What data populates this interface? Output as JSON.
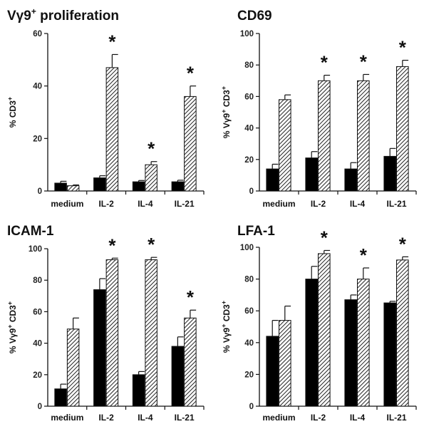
{
  "chart_data": [
    {
      "type": "bar",
      "title": "Vγ9",
      "title_sup": "+",
      "title_rest": " proliferation",
      "ylabel": "% CD3",
      "ylabel_sup": "+",
      "ylim": [
        0,
        60
      ],
      "yticks": [
        "0",
        "20",
        "40",
        "60"
      ],
      "categories": [
        "medium",
        "IL-2",
        "IL-4",
        "IL-21"
      ],
      "series": [
        {
          "fill": "solid",
          "values": [
            3,
            5,
            3.5,
            3.5
          ],
          "errors": [
            0.7,
            0.8,
            0.5,
            0.6
          ]
        },
        {
          "fill": "hatched",
          "values": [
            2,
            47,
            10,
            36
          ],
          "errors": [
            0.3,
            5,
            1.2,
            4
          ]
        }
      ],
      "significant": [
        "",
        "*",
        "*",
        "*"
      ]
    },
    {
      "type": "bar",
      "title": "CD69",
      "title_sup": "",
      "title_rest": "",
      "ylabel": "% Vγ9",
      "ylabel_sup": "+",
      "ylabel_rest": " CD3",
      "ylabel_sup2": "+",
      "ylim": [
        0,
        100
      ],
      "yticks": [
        "0",
        "20",
        "40",
        "60",
        "80",
        "100"
      ],
      "categories": [
        "medium",
        "IL-2",
        "IL-4",
        "IL-21"
      ],
      "series": [
        {
          "fill": "solid",
          "values": [
            14,
            21,
            14,
            22
          ],
          "errors": [
            3,
            4,
            4,
            5
          ]
        },
        {
          "fill": "hatched",
          "values": [
            58,
            70,
            70,
            79
          ],
          "errors": [
            3,
            3.5,
            4,
            4
          ]
        }
      ],
      "significant": [
        "",
        "*",
        "*",
        "*"
      ]
    },
    {
      "type": "bar",
      "title": "ICAM-1",
      "title_sup": "",
      "title_rest": "",
      "ylabel": "% Vγ9",
      "ylabel_sup": "+",
      "ylabel_rest": " CD3",
      "ylabel_sup2": "+",
      "ylim": [
        0,
        100
      ],
      "yticks": [
        "0",
        "20",
        "40",
        "60",
        "80",
        "100"
      ],
      "categories": [
        "medium",
        "IL-2",
        "IL-4",
        "IL-21"
      ],
      "series": [
        {
          "fill": "solid",
          "values": [
            11,
            74,
            20,
            38
          ],
          "errors": [
            3,
            7,
            2,
            6
          ]
        },
        {
          "fill": "hatched",
          "values": [
            49,
            93,
            93,
            56
          ],
          "errors": [
            7,
            1,
            1.5,
            5
          ]
        }
      ],
      "significant": [
        "",
        "*",
        "*",
        "*"
      ]
    },
    {
      "type": "bar",
      "title": "LFA-1",
      "title_sup": "",
      "title_rest": "",
      "ylabel": "% Vγ9",
      "ylabel_sup": "+",
      "ylabel_rest": " CD3",
      "ylabel_sup2": "+",
      "ylim": [
        0,
        100
      ],
      "yticks": [
        "0",
        "20",
        "40",
        "60",
        "80",
        "100"
      ],
      "categories": [
        "medium",
        "IL-2",
        "IL-4",
        "IL-21"
      ],
      "series": [
        {
          "fill": "solid",
          "values": [
            44,
            80,
            67,
            65
          ],
          "errors": [
            10,
            8,
            3,
            1
          ]
        },
        {
          "fill": "hatched",
          "values": [
            54,
            96,
            80,
            92
          ],
          "errors": [
            9,
            2,
            7,
            2
          ]
        }
      ],
      "significant": [
        "",
        "*",
        "*",
        "*"
      ]
    }
  ]
}
